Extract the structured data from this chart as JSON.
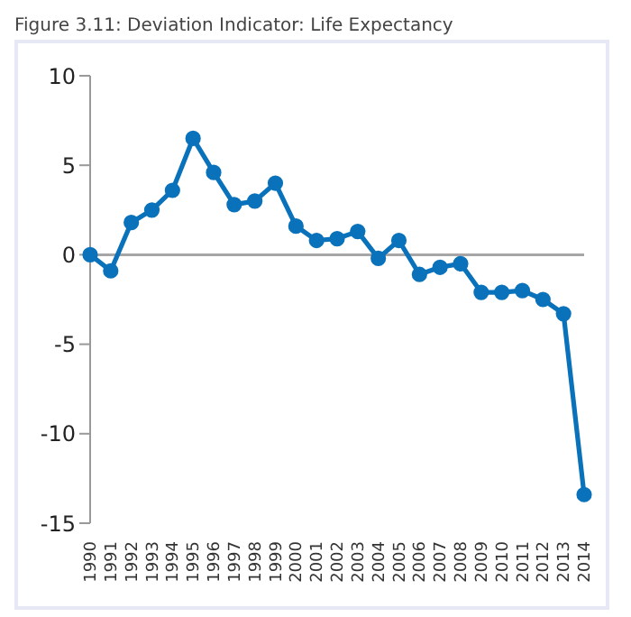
{
  "chart_data": {
    "type": "line",
    "title": "Figure 3.11: Deviation Indicator: Life Expectancy",
    "categories": [
      "1990",
      "1991",
      "1992",
      "1993",
      "1994",
      "1995",
      "1996",
      "1997",
      "1998",
      "1999",
      "2000",
      "2001",
      "2002",
      "2003",
      "2004",
      "2005",
      "2006",
      "2007",
      "2008",
      "2009",
      "2010",
      "2011",
      "2012",
      "2013",
      "2014"
    ],
    "series": [
      {
        "color": "#0a72bb",
        "values": [
          0,
          -0.9,
          1.8,
          2.5,
          3.6,
          6.5,
          4.6,
          2.8,
          3.0,
          4.0,
          1.6,
          0.8,
          0.9,
          1.3,
          -0.2,
          0.8,
          -1.1,
          -0.7,
          -0.5,
          -2.1,
          -2.1,
          -2.0,
          -2.5,
          -3.3,
          -13.4
        ]
      }
    ],
    "ylim": [
      -15,
      10
    ],
    "yticks": [
      -15,
      -10,
      -5,
      0,
      5,
      10
    ],
    "grid": false,
    "legend": false,
    "marker": "circle",
    "line_style": "solid",
    "ref_lines": [
      {
        "axis": "y",
        "value": 0,
        "color": "#a6a6a6"
      }
    ]
  }
}
